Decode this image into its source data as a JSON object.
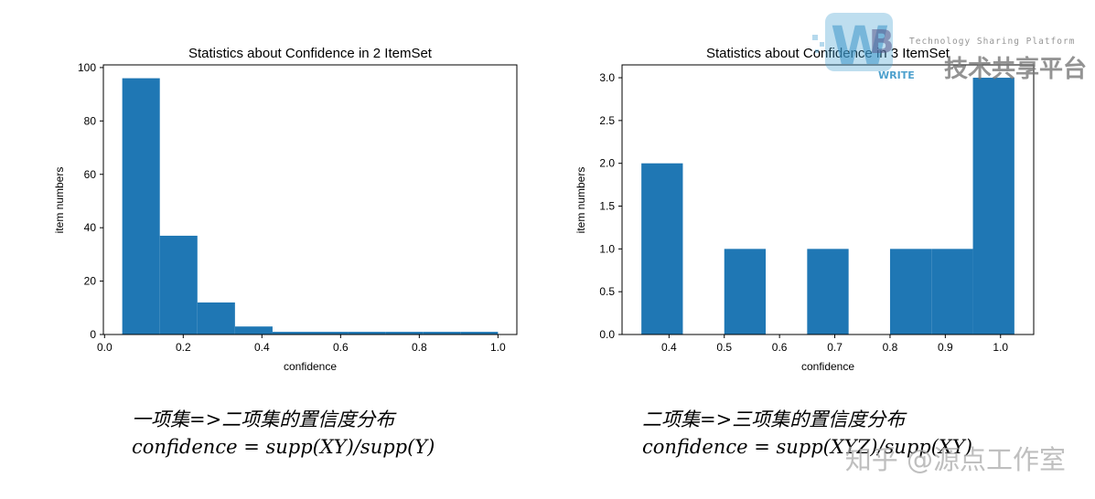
{
  "chart_data": [
    {
      "type": "bar",
      "title": "Statistics about Confidence in 2 ItemSet",
      "xlabel": "confidence",
      "ylabel": "item numbers",
      "bins": [
        [
          0.045,
          0.1405
        ],
        [
          0.1405,
          0.236
        ],
        [
          0.236,
          0.3315
        ],
        [
          0.3315,
          0.427
        ],
        [
          0.427,
          0.5225
        ],
        [
          0.5225,
          0.618
        ],
        [
          0.618,
          0.7135
        ],
        [
          0.7135,
          0.809
        ],
        [
          0.809,
          0.9045
        ],
        [
          0.9045,
          1.0
        ]
      ],
      "values": [
        96,
        37,
        12,
        3,
        1,
        1,
        1,
        1,
        1,
        1
      ],
      "xlim": [
        -0.003,
        1.048
      ],
      "ylim": [
        0,
        101
      ],
      "xticks": [
        0.0,
        0.2,
        0.4,
        0.6,
        0.8,
        1.0
      ],
      "xtick_labels": [
        "0.0",
        "0.2",
        "0.4",
        "0.6",
        "0.8",
        "1.0"
      ],
      "yticks": [
        0,
        20,
        40,
        60,
        80,
        100
      ],
      "ytick_labels": [
        "0",
        "20",
        "40",
        "60",
        "80",
        "100"
      ],
      "grid": false,
      "color": "#1f77b4"
    },
    {
      "type": "bar",
      "title": "Statistics about Confidence in 3 ItemSet",
      "xlabel": "confidence",
      "ylabel": "item numbers",
      "bins": [
        [
          0.35,
          0.425
        ],
        [
          0.425,
          0.5
        ],
        [
          0.5,
          0.575
        ],
        [
          0.575,
          0.65
        ],
        [
          0.65,
          0.725
        ],
        [
          0.725,
          0.8
        ],
        [
          0.8,
          0.875
        ],
        [
          0.875,
          0.95
        ],
        [
          0.95,
          1.025
        ]
      ],
      "values": [
        2,
        0,
        1,
        0,
        1,
        0,
        1,
        1,
        3
      ],
      "xlim": [
        0.315,
        1.06
      ],
      "ylim": [
        0,
        3.15
      ],
      "xticks": [
        0.4,
        0.5,
        0.6,
        0.7,
        0.8,
        0.9,
        1.0
      ],
      "xtick_labels": [
        "0.4",
        "0.5",
        "0.6",
        "0.7",
        "0.8",
        "0.9",
        "1.0"
      ],
      "yticks": [
        0,
        0.5,
        1,
        1.5,
        2,
        2.5,
        3
      ],
      "ytick_labels": [
        "0.0",
        "0.5",
        "1.0",
        "1.5",
        "2.0",
        "2.5",
        "3.0"
      ],
      "grid": false,
      "color": "#1f77b4"
    }
  ],
  "captions": {
    "left_line1": "一项集=>二项集的置信度分布",
    "left_line2": "confidence = supp(XY)/supp(Y)",
    "right_line1": "二项集=>三项集的置信度分布",
    "right_line2": "confidence = supp(XYZ)/supp(XY)"
  },
  "watermark": {
    "text": "知乎 @源点工作室",
    "logo_tagline": "Technology Sharing Platform",
    "logo_title": "技术共享平台",
    "logo_write": "WRITE"
  }
}
